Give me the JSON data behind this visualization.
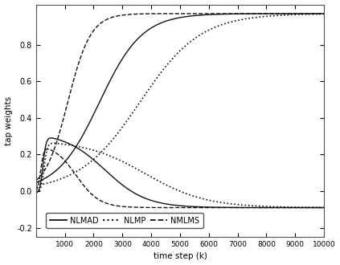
{
  "title": "",
  "xlabel": "time step (k)",
  "ylabel": "tap weights",
  "xlim": [
    0,
    10000
  ],
  "ylim": [
    -0.25,
    1.02
  ],
  "yticks": [
    -0.2,
    0.0,
    0.2,
    0.4,
    0.6,
    0.8
  ],
  "xticks": [
    0,
    1000,
    2000,
    3000,
    4000,
    5000,
    6000,
    7000,
    8000,
    9000,
    10000
  ],
  "bg_color": "#ffffff",
  "line_color": "#111111",
  "legend_entries": [
    "NLMAD",
    "NLMP",
    "NMLMS"
  ],
  "legend_styles": [
    "solid",
    "dotted",
    "dashed"
  ],
  "n_points": 800,
  "final_upper": 0.97,
  "final_lower": -0.09,
  "nlmad_upper_mid": 2200,
  "nlmad_upper_steep": 0.00135,
  "nlmad_lower_peak": 0.32,
  "nlmad_lower_peak_k": 600,
  "nlmad_lower_decay_mid": 2400,
  "nlmad_lower_decay_steep": 0.0014,
  "nlmp_upper_mid": 3600,
  "nlmp_upper_steep": 0.00095,
  "nlmp_lower_peak": 0.28,
  "nlmp_lower_peak_k": 700,
  "nlmp_lower_decay_mid": 3800,
  "nlmp_lower_decay_steep": 0.00095,
  "nmlms_upper_mid": 1100,
  "nmlms_upper_steep": 0.0025,
  "nmlms_lower_peak": 0.26,
  "nmlms_lower_peak_k": 400,
  "nmlms_lower_decay_mid": 1400,
  "nmlms_lower_decay_steep": 0.0025
}
